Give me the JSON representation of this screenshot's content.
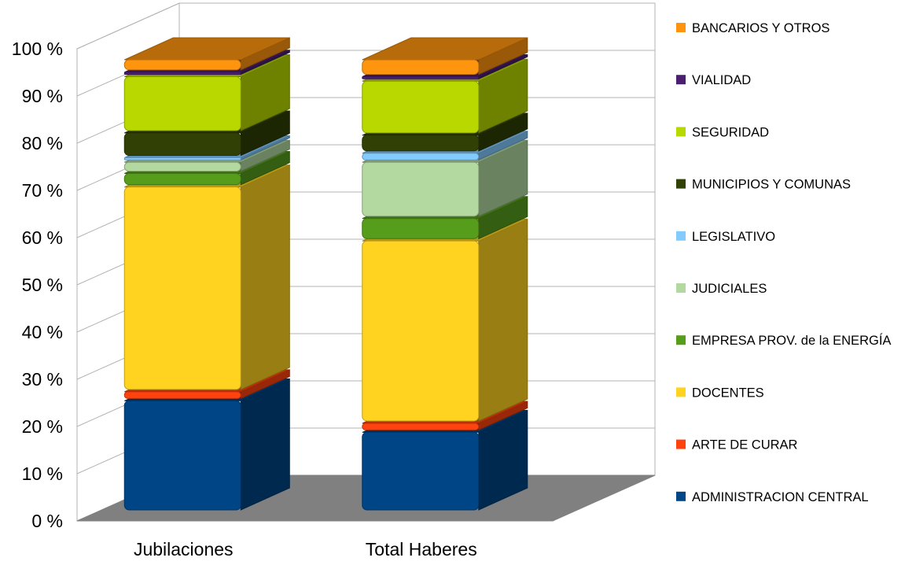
{
  "chart_data": {
    "type": "bar",
    "stacked": true,
    "percent_stacked": true,
    "three_d": true,
    "categories": [
      "Jubilaciones",
      "Total Haberes"
    ],
    "y_ticks": [
      "0 %",
      "10 %",
      "20 %",
      "30 %",
      "40 %",
      "50 %",
      "60 %",
      "70 %",
      "80 %",
      "90 %",
      "100 %"
    ],
    "ylim": [
      0,
      100
    ],
    "grid": true,
    "legend_position": "right",
    "series": [
      {
        "name": "ADMINISTRACION CENTRAL",
        "color": "#004586",
        "values": [
          24.5,
          17.5
        ]
      },
      {
        "name": "ARTE DE CURAR",
        "color": "#ff420e",
        "values": [
          2.0,
          2.0
        ]
      },
      {
        "name": "DOCENTES",
        "color": "#ffd320",
        "values": [
          45.5,
          40.5
        ]
      },
      {
        "name": "EMPRESA PROV. de la ENERGÍA",
        "color": "#579d1c",
        "values": [
          3.0,
          5.0
        ]
      },
      {
        "name": "JUDICIALES",
        "color": "#b3d9a1",
        "values": [
          2.5,
          12.5
        ]
      },
      {
        "name": "LEGISLATIVO",
        "color": "#83caff",
        "values": [
          1.0,
          2.0
        ]
      },
      {
        "name": "MUNICIPIOS Y COMUNAS",
        "color": "#314004",
        "values": [
          5.5,
          4.0
        ]
      },
      {
        "name": "SEGURIDAD",
        "color": "#b8d800",
        "values": [
          12.5,
          12.0
        ]
      },
      {
        "name": "VIALIDAD",
        "color": "#4b1f6f",
        "values": [
          1.0,
          1.0
        ]
      },
      {
        "name": "BANCARIOS Y OTROS",
        "color": "#ff950e",
        "values": [
          2.5,
          3.5
        ]
      }
    ]
  }
}
